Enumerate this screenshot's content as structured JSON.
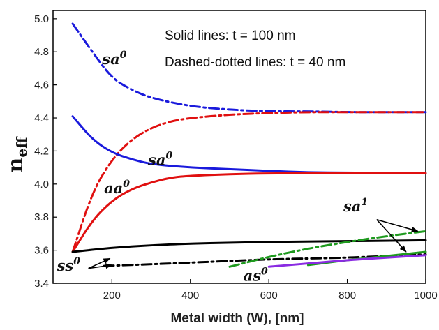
{
  "chart_data": {
    "type": "line",
    "title": "",
    "xlabel": "Metal width (W), [nm]",
    "ylabel": "n",
    "ylabel_sub": "eff",
    "xlim": [
      50,
      1000
    ],
    "ylim": [
      3.4,
      5.05
    ],
    "xticks": [
      200,
      400,
      600,
      800,
      1000
    ],
    "yticks": [
      3.4,
      3.6,
      3.8,
      4.0,
      4.2,
      4.4,
      4.6,
      4.8,
      5.0
    ],
    "grid": false,
    "legend_notes": [
      "Solid lines: t = 100 nm",
      "Dashed-dotted lines: t = 40 nm"
    ],
    "series": [
      {
        "mode": "sa0",
        "thickness": "t = 40 nm",
        "style": "dash-dot",
        "color": "#1a1adc",
        "x": [
          100,
          150,
          200,
          250,
          300,
          400,
          500,
          600,
          700,
          800,
          900,
          1000
        ],
        "y": [
          4.97,
          4.8,
          4.64,
          4.57,
          4.52,
          4.47,
          4.45,
          4.44,
          4.44,
          4.435,
          4.435,
          4.435
        ]
      },
      {
        "mode": "aa0",
        "thickness": "t = 40 nm",
        "style": "dash-dot",
        "color": "#e01010",
        "x": [
          100,
          150,
          200,
          250,
          300,
          350,
          400,
          500,
          600,
          700,
          800,
          900,
          1000
        ],
        "y": [
          3.59,
          3.95,
          4.15,
          4.27,
          4.34,
          4.38,
          4.4,
          4.42,
          4.43,
          4.435,
          4.435,
          4.435,
          4.435
        ]
      },
      {
        "mode": "sa0",
        "thickness": "t = 100 nm",
        "style": "solid",
        "color": "#1a1adc",
        "x": [
          100,
          150,
          200,
          250,
          300,
          400,
          500,
          600,
          700,
          800,
          900,
          1000
        ],
        "y": [
          4.41,
          4.27,
          4.19,
          4.15,
          4.12,
          4.1,
          4.09,
          4.08,
          4.07,
          4.07,
          4.065,
          4.065
        ]
      },
      {
        "mode": "aa0",
        "thickness": "t = 100 nm",
        "style": "solid",
        "color": "#e01010",
        "x": [
          100,
          150,
          200,
          250,
          300,
          350,
          400,
          500,
          600,
          700,
          800,
          900,
          1000
        ],
        "y": [
          3.59,
          3.78,
          3.9,
          3.97,
          4.01,
          4.04,
          4.05,
          4.06,
          4.065,
          4.065,
          4.065,
          4.065,
          4.065
        ]
      },
      {
        "mode": "ss0",
        "thickness": "t = 100 nm",
        "style": "solid",
        "color": "#000000",
        "x": [
          100,
          200,
          300,
          400,
          500,
          600,
          700,
          800,
          900,
          1000
        ],
        "y": [
          3.59,
          3.615,
          3.63,
          3.64,
          3.645,
          3.65,
          3.652,
          3.655,
          3.657,
          3.66
        ]
      },
      {
        "mode": "ss0",
        "thickness": "t = 40 nm",
        "style": "dash-dot",
        "color": "#000000",
        "x": [
          180,
          300,
          400,
          500,
          600,
          700,
          800,
          900,
          1000
        ],
        "y": [
          3.505,
          3.515,
          3.525,
          3.535,
          3.545,
          3.55,
          3.555,
          3.565,
          3.575
        ]
      },
      {
        "mode": "sa1",
        "thickness": "t = 40 nm",
        "style": "dash-dot",
        "color": "#1e9a1e",
        "x": [
          500,
          600,
          700,
          800,
          900,
          1000
        ],
        "y": [
          3.5,
          3.56,
          3.61,
          3.65,
          3.685,
          3.715
        ]
      },
      {
        "mode": "sa1",
        "thickness": "t = 100 nm",
        "style": "solid",
        "color": "#1e9a1e",
        "x": [
          700,
          800,
          900,
          1000
        ],
        "y": [
          3.51,
          3.54,
          3.565,
          3.59
        ]
      },
      {
        "mode": "as0",
        "thickness": "t = 100 nm",
        "style": "solid",
        "color": "#8a2be2",
        "x": [
          600,
          700,
          800,
          900,
          1000
        ],
        "y": [
          3.5,
          3.52,
          3.54,
          3.555,
          3.57
        ]
      }
    ],
    "annotations": [
      {
        "text": "sa",
        "sup": "0",
        "x": 175,
        "y": 4.725
      },
      {
        "text": "sa",
        "sup": "0",
        "x": 292,
        "y": 4.115
      },
      {
        "text": "aa",
        "sup": "0",
        "x": 180,
        "y": 3.945
      },
      {
        "text": "ss",
        "sup": "0",
        "x": 60,
        "y": 3.475
      },
      {
        "text": "as",
        "sup": "0",
        "x": 535,
        "y": 3.415
      },
      {
        "text": "sa",
        "sup": "1",
        "x": 790,
        "y": 3.835
      }
    ],
    "arrows": [
      {
        "from": [
          140,
          3.49
        ],
        "to": [
          195,
          3.55
        ]
      },
      {
        "from": [
          140,
          3.49
        ],
        "to": [
          200,
          3.51
        ]
      },
      {
        "from": [
          875,
          3.785
        ],
        "to": [
          980,
          3.715
        ]
      },
      {
        "from": [
          875,
          3.785
        ],
        "to": [
          950,
          3.59
        ]
      }
    ]
  }
}
